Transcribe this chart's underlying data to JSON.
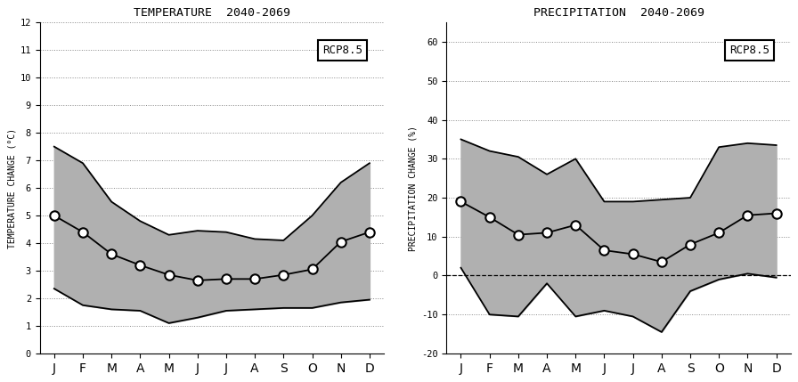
{
  "months": [
    "J",
    "F",
    "M",
    "A",
    "M",
    "J",
    "J",
    "A",
    "S",
    "O",
    "N",
    "D"
  ],
  "temp_median": [
    5.0,
    4.4,
    3.6,
    3.2,
    2.85,
    2.65,
    2.7,
    2.7,
    2.85,
    3.05,
    4.05,
    4.4
  ],
  "temp_upper": [
    7.5,
    6.9,
    5.5,
    4.8,
    4.3,
    4.45,
    4.4,
    4.15,
    4.1,
    5.0,
    6.2,
    6.9
  ],
  "temp_lower": [
    2.35,
    1.75,
    1.6,
    1.55,
    1.1,
    1.3,
    1.55,
    1.6,
    1.65,
    1.65,
    1.85,
    1.95
  ],
  "temp_ylim": [
    0,
    12
  ],
  "temp_yticks": [
    0,
    1,
    2,
    3,
    4,
    5,
    6,
    7,
    8,
    9,
    10,
    11,
    12
  ],
  "temp_ylabel": "TEMPERATURE CHANGE (°C)",
  "temp_title": "TEMPERATURE  2040-2069",
  "precip_median": [
    19.0,
    15.0,
    10.5,
    11.0,
    13.0,
    6.5,
    5.5,
    3.5,
    8.0,
    11.0,
    15.5,
    16.0
  ],
  "precip_upper": [
    35.0,
    32.0,
    30.5,
    26.0,
    30.0,
    19.0,
    19.0,
    19.5,
    20.0,
    33.0,
    34.0,
    33.5
  ],
  "precip_lower": [
    2.0,
    -10.0,
    -10.5,
    -2.0,
    -10.5,
    -9.0,
    -10.5,
    -14.5,
    -4.0,
    -1.0,
    0.5,
    -0.5
  ],
  "precip_ylim": [
    -20,
    65
  ],
  "precip_yticks": [
    -20,
    -10,
    0,
    10,
    20,
    30,
    40,
    50,
    60
  ],
  "precip_ylabel": "PRECIPITATION CHANGE (%)",
  "precip_title": "PRECIPITATION  2040-2069",
  "label": "RCP8.5",
  "shade_color": "#b0b0b0",
  "line_color": "#000000",
  "marker_face": "#ffffff",
  "marker_edge": "#000000",
  "background_color": "#ffffff"
}
